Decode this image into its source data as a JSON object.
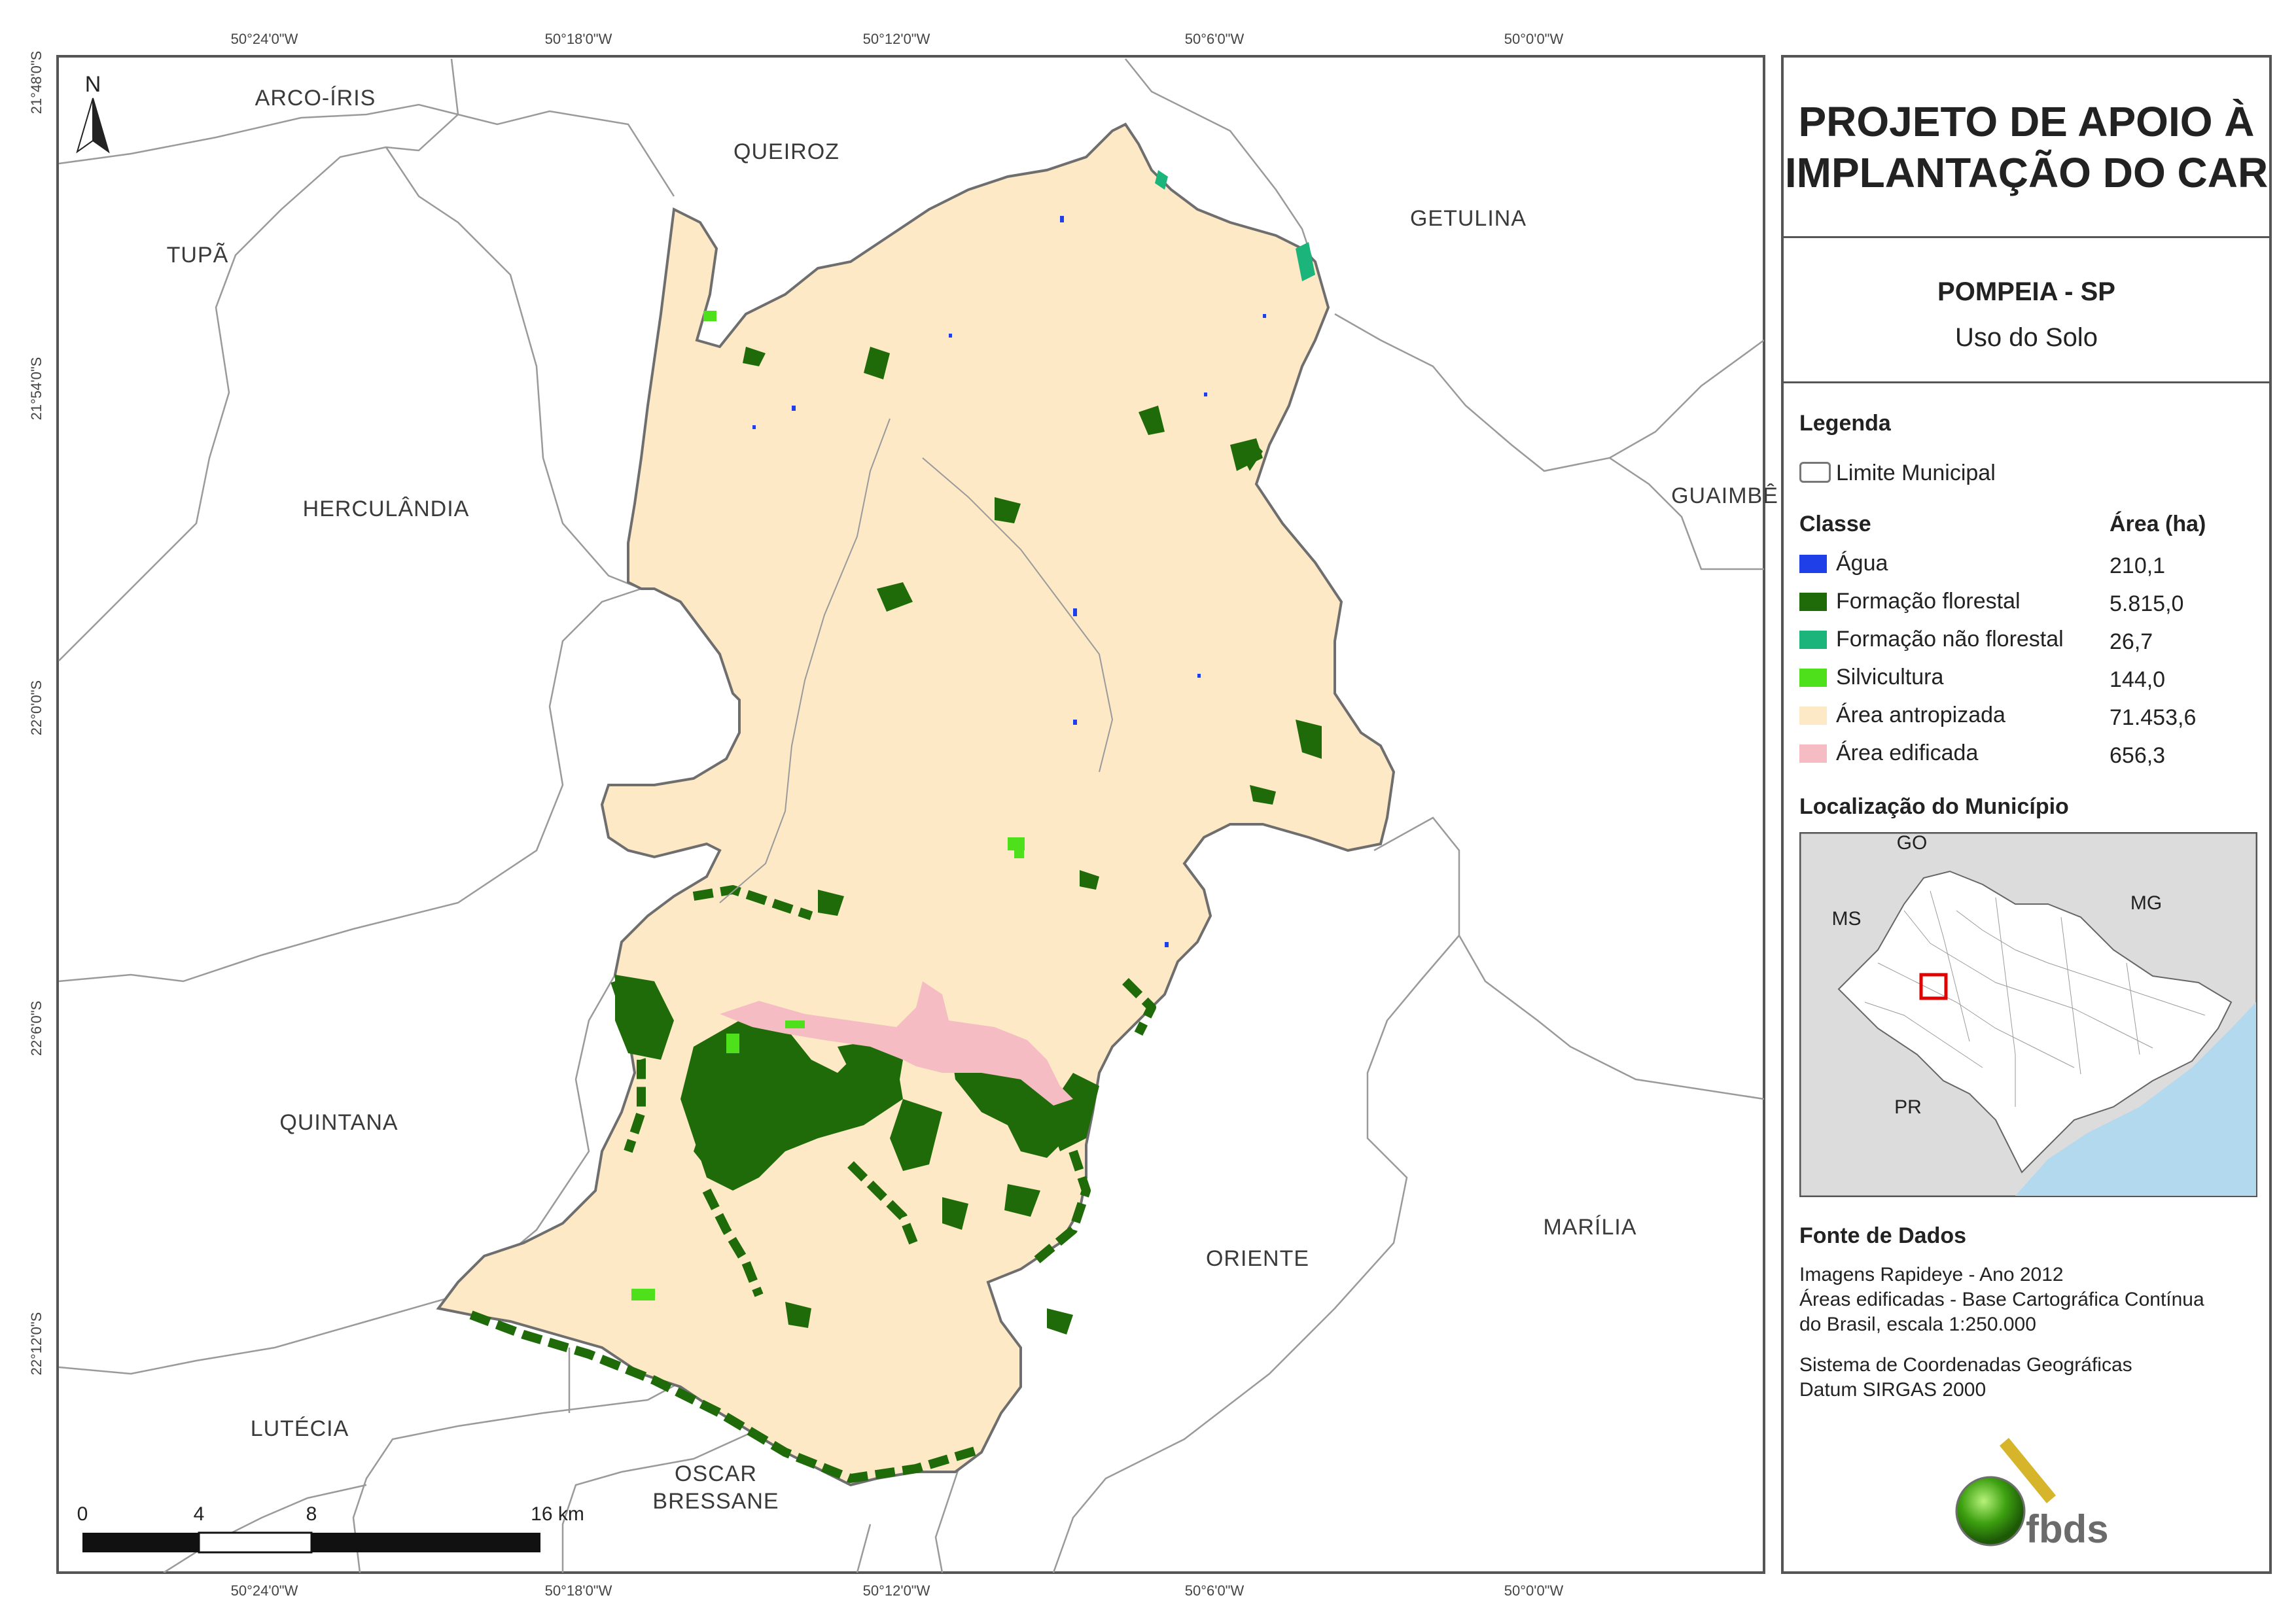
{
  "title": {
    "line1": "PROJETO DE APOIO À",
    "line2": "IMPLANTAÇÃO DO CAR"
  },
  "municipality": {
    "name": "POMPEIA - SP",
    "subtitle": "Uso do Solo"
  },
  "legend": {
    "title": "Legenda",
    "boundary_label": "Limite Municipal",
    "class_header": "Classe",
    "area_header": "Área (ha)",
    "classes": [
      {
        "label": "Água",
        "area": "210,1",
        "color": "#1f3fe8"
      },
      {
        "label": "Formação florestal",
        "area": "5.815,0",
        "color": "#1f6b0a"
      },
      {
        "label": "Formação não florestal",
        "area": "26,7",
        "color": "#1bb47a"
      },
      {
        "label": "Silvicultura",
        "area": "144,0",
        "color": "#4ee01b"
      },
      {
        "label": "Área antropizada",
        "area": "71.453,6",
        "color": "#fde9c6"
      },
      {
        "label": "Área edificada",
        "area": "656,3",
        "color": "#f6bcc4"
      }
    ]
  },
  "location": {
    "title": "Localização do Município",
    "labels": {
      "go": "GO",
      "ms": "MS",
      "mg": "MG",
      "pr": "PR"
    }
  },
  "sources": {
    "title": "Fonte de Dados",
    "line1": "Imagens Rapideye - Ano 2012",
    "line2": "Áreas edificadas - Base Cartográfica Contínua",
    "line3": "do Brasil, escala 1:250.000",
    "line4": "Sistema de Coordenadas Geográficas",
    "line5": "Datum SIRGAS 2000"
  },
  "logo": {
    "text": "fbds"
  },
  "north": "N",
  "scale": {
    "labels": [
      "0",
      "4",
      "8",
      "16 km"
    ]
  },
  "neighbors": {
    "arco_iris": "ARCO-ÍRIS",
    "queiroz": "QUEIROZ",
    "getulina": "GETULINA",
    "tupa": "TUPÃ",
    "herculandia": "HERCULÂNDIA",
    "guaimbe": "GUAIMBÊ",
    "quintana": "QUINTANA",
    "oriente": "ORIENTE",
    "marilia": "MARÍLIA",
    "lutecia": "LUTÉCIA",
    "oscar_1": "OSCAR",
    "oscar_2": "BRESSANE"
  },
  "ticks": {
    "lon": [
      "50°24'0\"W",
      "50°18'0\"W",
      "50°12'0\"W",
      "50°6'0\"W",
      "50°0'0\"W"
    ],
    "lat": [
      "21°48'0\"S",
      "21°54'0\"S",
      "22°0'0\"S",
      "22°6'0\"S",
      "22°12'0\"S"
    ]
  },
  "colors": {
    "frame": "#555555",
    "boundary": "#8a8a8a",
    "water": "#1f3fe8",
    "forest": "#1f6b0a",
    "nonforest": "#1bb47a",
    "silviculture": "#4ee01b",
    "anthropic": "#fde9c6",
    "urban": "#f6bcc4",
    "sea": "#b3d9ef",
    "locator_bg": "#dcdcdc"
  }
}
